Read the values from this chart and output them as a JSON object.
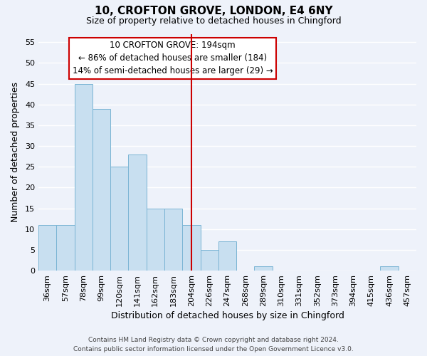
{
  "title_line1": "10, CROFTON GROVE, LONDON, E4 6NY",
  "title_line2": "Size of property relative to detached houses in Chingford",
  "xlabel": "Distribution of detached houses by size in Chingford",
  "ylabel": "Number of detached properties",
  "bar_labels": [
    "36sqm",
    "57sqm",
    "78sqm",
    "99sqm",
    "120sqm",
    "141sqm",
    "162sqm",
    "183sqm",
    "204sqm",
    "226sqm",
    "247sqm",
    "268sqm",
    "289sqm",
    "310sqm",
    "331sqm",
    "352sqm",
    "373sqm",
    "394sqm",
    "415sqm",
    "436sqm",
    "457sqm"
  ],
  "bar_values": [
    11,
    11,
    45,
    39,
    25,
    28,
    15,
    15,
    11,
    5,
    7,
    0,
    1,
    0,
    0,
    0,
    0,
    0,
    0,
    1,
    0
  ],
  "bar_color": "#c8dff0",
  "bar_edge_color": "#7ab4d4",
  "vline_index": 8,
  "vline_color": "#cc0000",
  "annotation_title": "10 CROFTON GROVE: 194sqm",
  "annotation_line1": "← 86% of detached houses are smaller (184)",
  "annotation_line2": "14% of semi-detached houses are larger (29) →",
  "annotation_box_color": "#cc0000",
  "annotation_bg": "#ffffff",
  "ylim_max": 57,
  "yticks": [
    0,
    5,
    10,
    15,
    20,
    25,
    30,
    35,
    40,
    45,
    50,
    55
  ],
  "footer_line1": "Contains HM Land Registry data © Crown copyright and database right 2024.",
  "footer_line2": "Contains public sector information licensed under the Open Government Licence v3.0.",
  "bg_color": "#eef2fa",
  "grid_color": "#ffffff",
  "title_fontsize": 11,
  "subtitle_fontsize": 9,
  "xlabel_fontsize": 9,
  "ylabel_fontsize": 9,
  "tick_fontsize": 8,
  "ann_fontsize": 8.5,
  "footer_fontsize": 6.5
}
